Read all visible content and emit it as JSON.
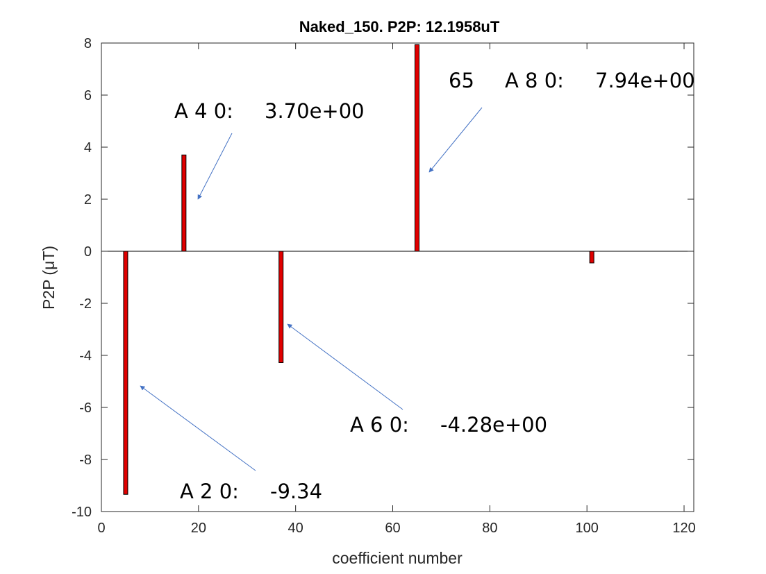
{
  "chart_data": {
    "type": "bar",
    "title": "Naked_150. P2P: 12.1958uT",
    "xlabel": "coefficient number",
    "ylabel": "P2P (μT)",
    "xlim": [
      0,
      122
    ],
    "ylim": [
      -10,
      8
    ],
    "xticks": [
      0,
      20,
      40,
      60,
      80,
      100,
      120
    ],
    "yticks": [
      -10,
      -8,
      -6,
      -4,
      -2,
      0,
      2,
      4,
      6,
      8
    ],
    "grid": false,
    "bar_color": "#e00000",
    "bar_edge_color": "#000000",
    "arrow_color": "#4472c4",
    "bars": [
      {
        "x": 5,
        "value": -9.34
      },
      {
        "x": 17,
        "value": 3.7
      },
      {
        "x": 37,
        "value": -4.28
      },
      {
        "x": 65,
        "value": 7.94
      },
      {
        "x": 101,
        "value": -0.45
      }
    ],
    "annotations": [
      {
        "key": "a20",
        "name": "A 2 0:",
        "value": "-9.34"
      },
      {
        "key": "a40",
        "name": "A 4 0:",
        "value": "3.70e+00"
      },
      {
        "key": "a60",
        "name": "A 6 0:",
        "value": "-4.28e+00"
      },
      {
        "key": "a80",
        "prefix": "65",
        "name": "A 8 0:",
        "value": "7.94e+00"
      }
    ]
  }
}
